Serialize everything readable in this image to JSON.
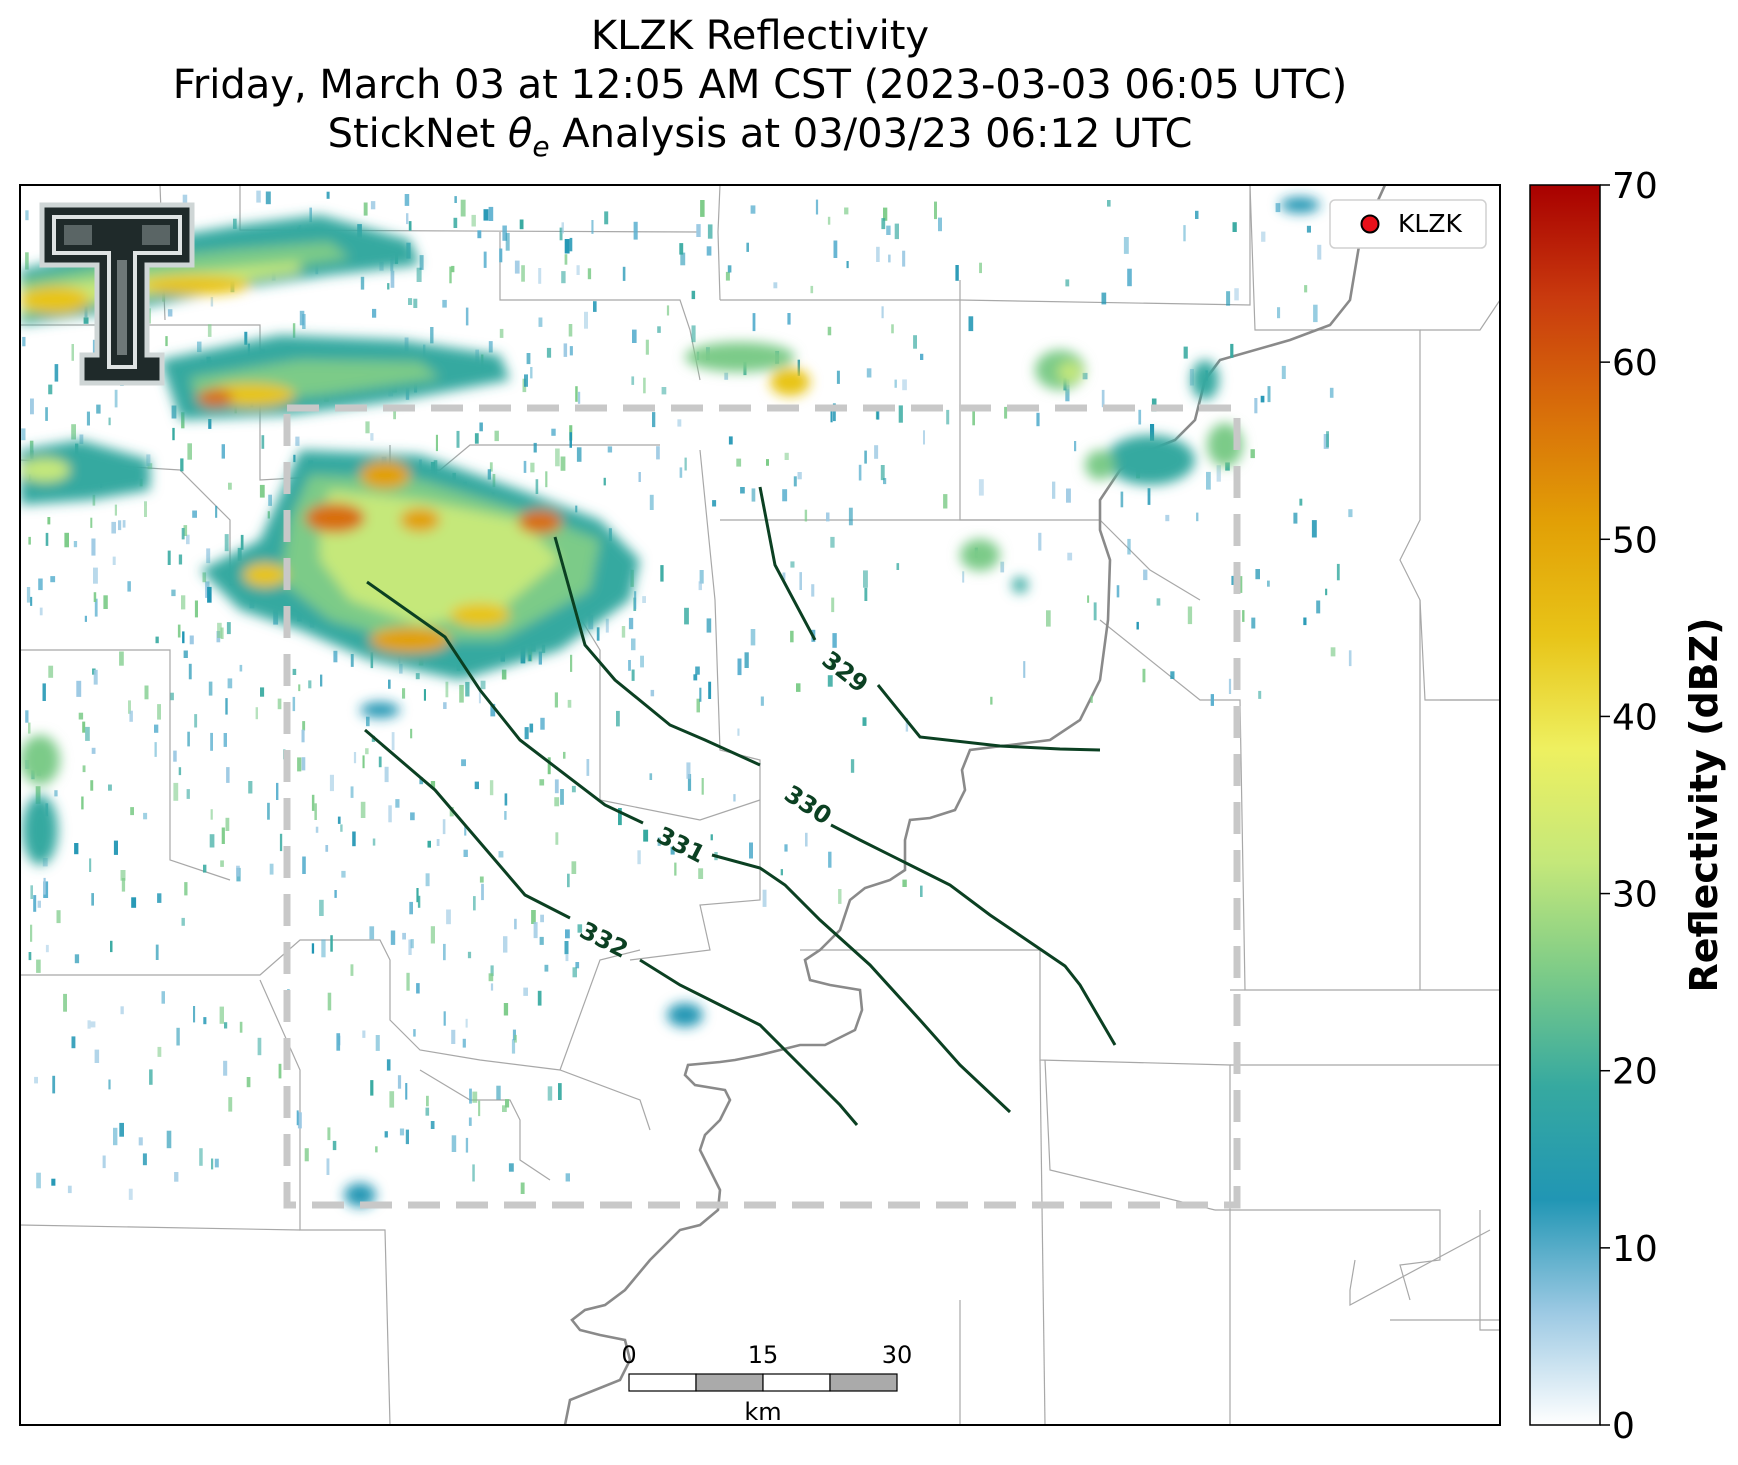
{
  "title": {
    "line1": "KLZK Reflectivity",
    "line2": "Friday, March 03 at 12:05 AM CST (2023-03-03 06:05 UTC)",
    "line3_prefix": "StickNet ",
    "line3_theta": "θ",
    "line3_sub": "e",
    "line3_suffix": " Analysis at 03/03/23 06:12 UTC"
  },
  "legend": {
    "station_label": "KLZK",
    "marker_color": "#e8101a"
  },
  "colorbar": {
    "label": "Reflectivity (dBZ)",
    "ticks": [
      "0",
      "10",
      "20",
      "30",
      "40",
      "50",
      "60",
      "70"
    ],
    "range": [
      0,
      70
    ],
    "colors": [
      "#ffffff",
      "#9cc9e3",
      "#2196b4",
      "#36a9a0",
      "#7ccb88",
      "#c5e87a",
      "#eef060",
      "#e8c418",
      "#e2a006",
      "#d86e0a",
      "#c93a0e",
      "#a80000"
    ]
  },
  "scalebar": {
    "ticks": [
      "0",
      "15",
      "30"
    ],
    "unit": "km"
  },
  "contours": [
    {
      "label": "329"
    },
    {
      "label": "330"
    },
    {
      "label": "331"
    },
    {
      "label": "332"
    }
  ],
  "logo": {
    "name": "Texas Tech Double T",
    "letter": "T"
  },
  "colors": {
    "contour": "#0b4022",
    "river": "#8a8a8a",
    "county": "#a8a8a8",
    "domain_box": "#c8c8c8"
  }
}
